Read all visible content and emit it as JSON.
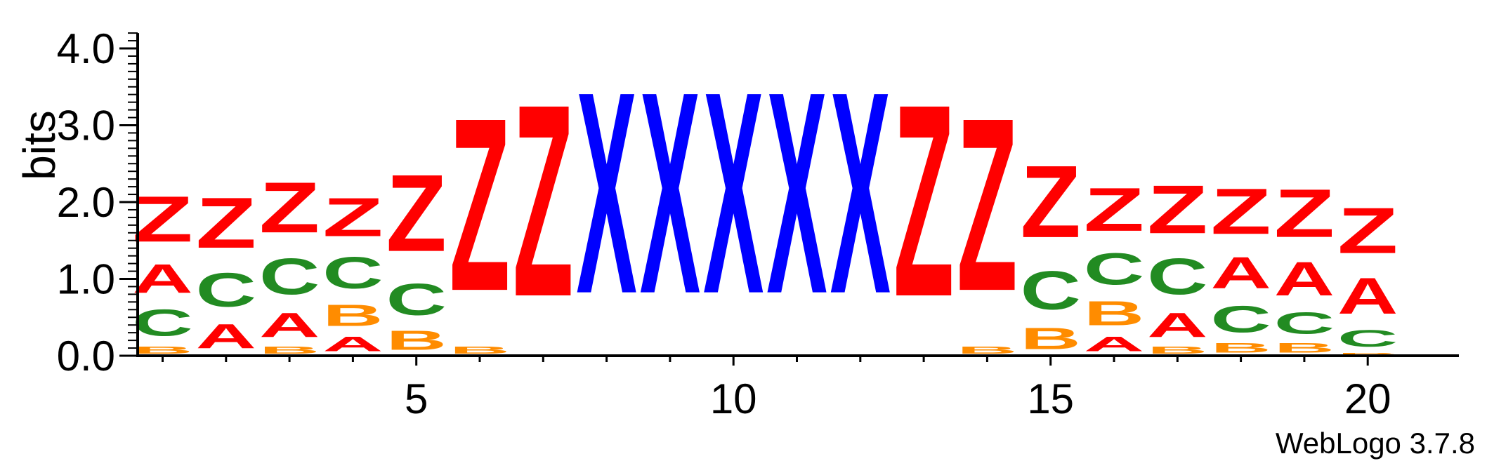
{
  "chart_data": {
    "type": "sequence-logo",
    "ylabel": "bits",
    "ylim": [
      0,
      4.2
    ],
    "y_ticks": [
      "0.0",
      "1.0",
      "2.0",
      "3.0",
      "4.0"
    ],
    "x_ticks": [
      "5",
      "10",
      "15",
      "20"
    ],
    "x_tick_values": [
      5,
      10,
      15,
      20
    ],
    "credit": "WebLogo 3.7.8",
    "colors": {
      "Z": "#ff0000",
      "X": "#0000ff",
      "C": "#228b22",
      "A": "#ff0000",
      "B": "#ff8c00"
    },
    "positions": [
      {
        "pos": 1,
        "stack": [
          [
            "B",
            0.15
          ],
          [
            "C",
            0.55
          ],
          [
            "A",
            0.6
          ],
          [
            "Z",
            0.95
          ]
        ]
      },
      {
        "pos": 2,
        "stack": [
          [
            "A",
            0.5
          ],
          [
            "C",
            0.7
          ],
          [
            "Z",
            1.05
          ]
        ]
      },
      {
        "pos": 3,
        "stack": [
          [
            "B",
            0.15
          ],
          [
            "A",
            0.5
          ],
          [
            "C",
            0.75
          ],
          [
            "Z",
            1.05
          ]
        ]
      },
      {
        "pos": 4,
        "stack": [
          [
            "A",
            0.3
          ],
          [
            "B",
            0.45
          ],
          [
            "C",
            0.65
          ],
          [
            "Z",
            0.8
          ]
        ]
      },
      {
        "pos": 5,
        "stack": [
          [
            "B",
            0.4
          ],
          [
            "C",
            0.65
          ],
          [
            "Z",
            1.6
          ]
        ]
      },
      {
        "pos": 6,
        "stack": [
          [
            "B",
            0.15
          ],
          [
            "Z",
            3.6
          ]
        ]
      },
      {
        "pos": 7,
        "stack": [
          [
            "Z",
            4.0
          ]
        ]
      },
      {
        "pos": 8,
        "stack": [
          [
            "X",
            4.2
          ]
        ]
      },
      {
        "pos": 9,
        "stack": [
          [
            "X",
            4.2
          ]
        ]
      },
      {
        "pos": 10,
        "stack": [
          [
            "X",
            4.2
          ]
        ]
      },
      {
        "pos": 11,
        "stack": [
          [
            "X",
            4.2
          ]
        ]
      },
      {
        "pos": 12,
        "stack": [
          [
            "X",
            4.2
          ]
        ]
      },
      {
        "pos": 13,
        "stack": [
          [
            "Z",
            4.0
          ]
        ]
      },
      {
        "pos": 14,
        "stack": [
          [
            "B",
            0.15
          ],
          [
            "Z",
            3.6
          ]
        ]
      },
      {
        "pos": 15,
        "stack": [
          [
            "B",
            0.45
          ],
          [
            "C",
            0.8
          ],
          [
            "Z",
            1.5
          ]
        ]
      },
      {
        "pos": 16,
        "stack": [
          [
            "A",
            0.3
          ],
          [
            "B",
            0.5
          ],
          [
            "C",
            0.65
          ],
          [
            "Z",
            0.9
          ]
        ]
      },
      {
        "pos": 17,
        "stack": [
          [
            "B",
            0.15
          ],
          [
            "A",
            0.5
          ],
          [
            "C",
            0.75
          ],
          [
            "Z",
            1.0
          ]
        ]
      },
      {
        "pos": 18,
        "stack": [
          [
            "B",
            0.2
          ],
          [
            "C",
            0.55
          ],
          [
            "A",
            0.65
          ],
          [
            "Z",
            0.95
          ]
        ]
      },
      {
        "pos": 19,
        "stack": [
          [
            "B",
            0.2
          ],
          [
            "C",
            0.45
          ],
          [
            "A",
            0.7
          ],
          [
            "Z",
            1.0
          ]
        ]
      },
      {
        "pos": 20,
        "stack": [
          [
            "B",
            0.05
          ],
          [
            "C",
            0.35
          ],
          [
            "A",
            0.75
          ],
          [
            "Z",
            0.95
          ]
        ]
      }
    ]
  }
}
